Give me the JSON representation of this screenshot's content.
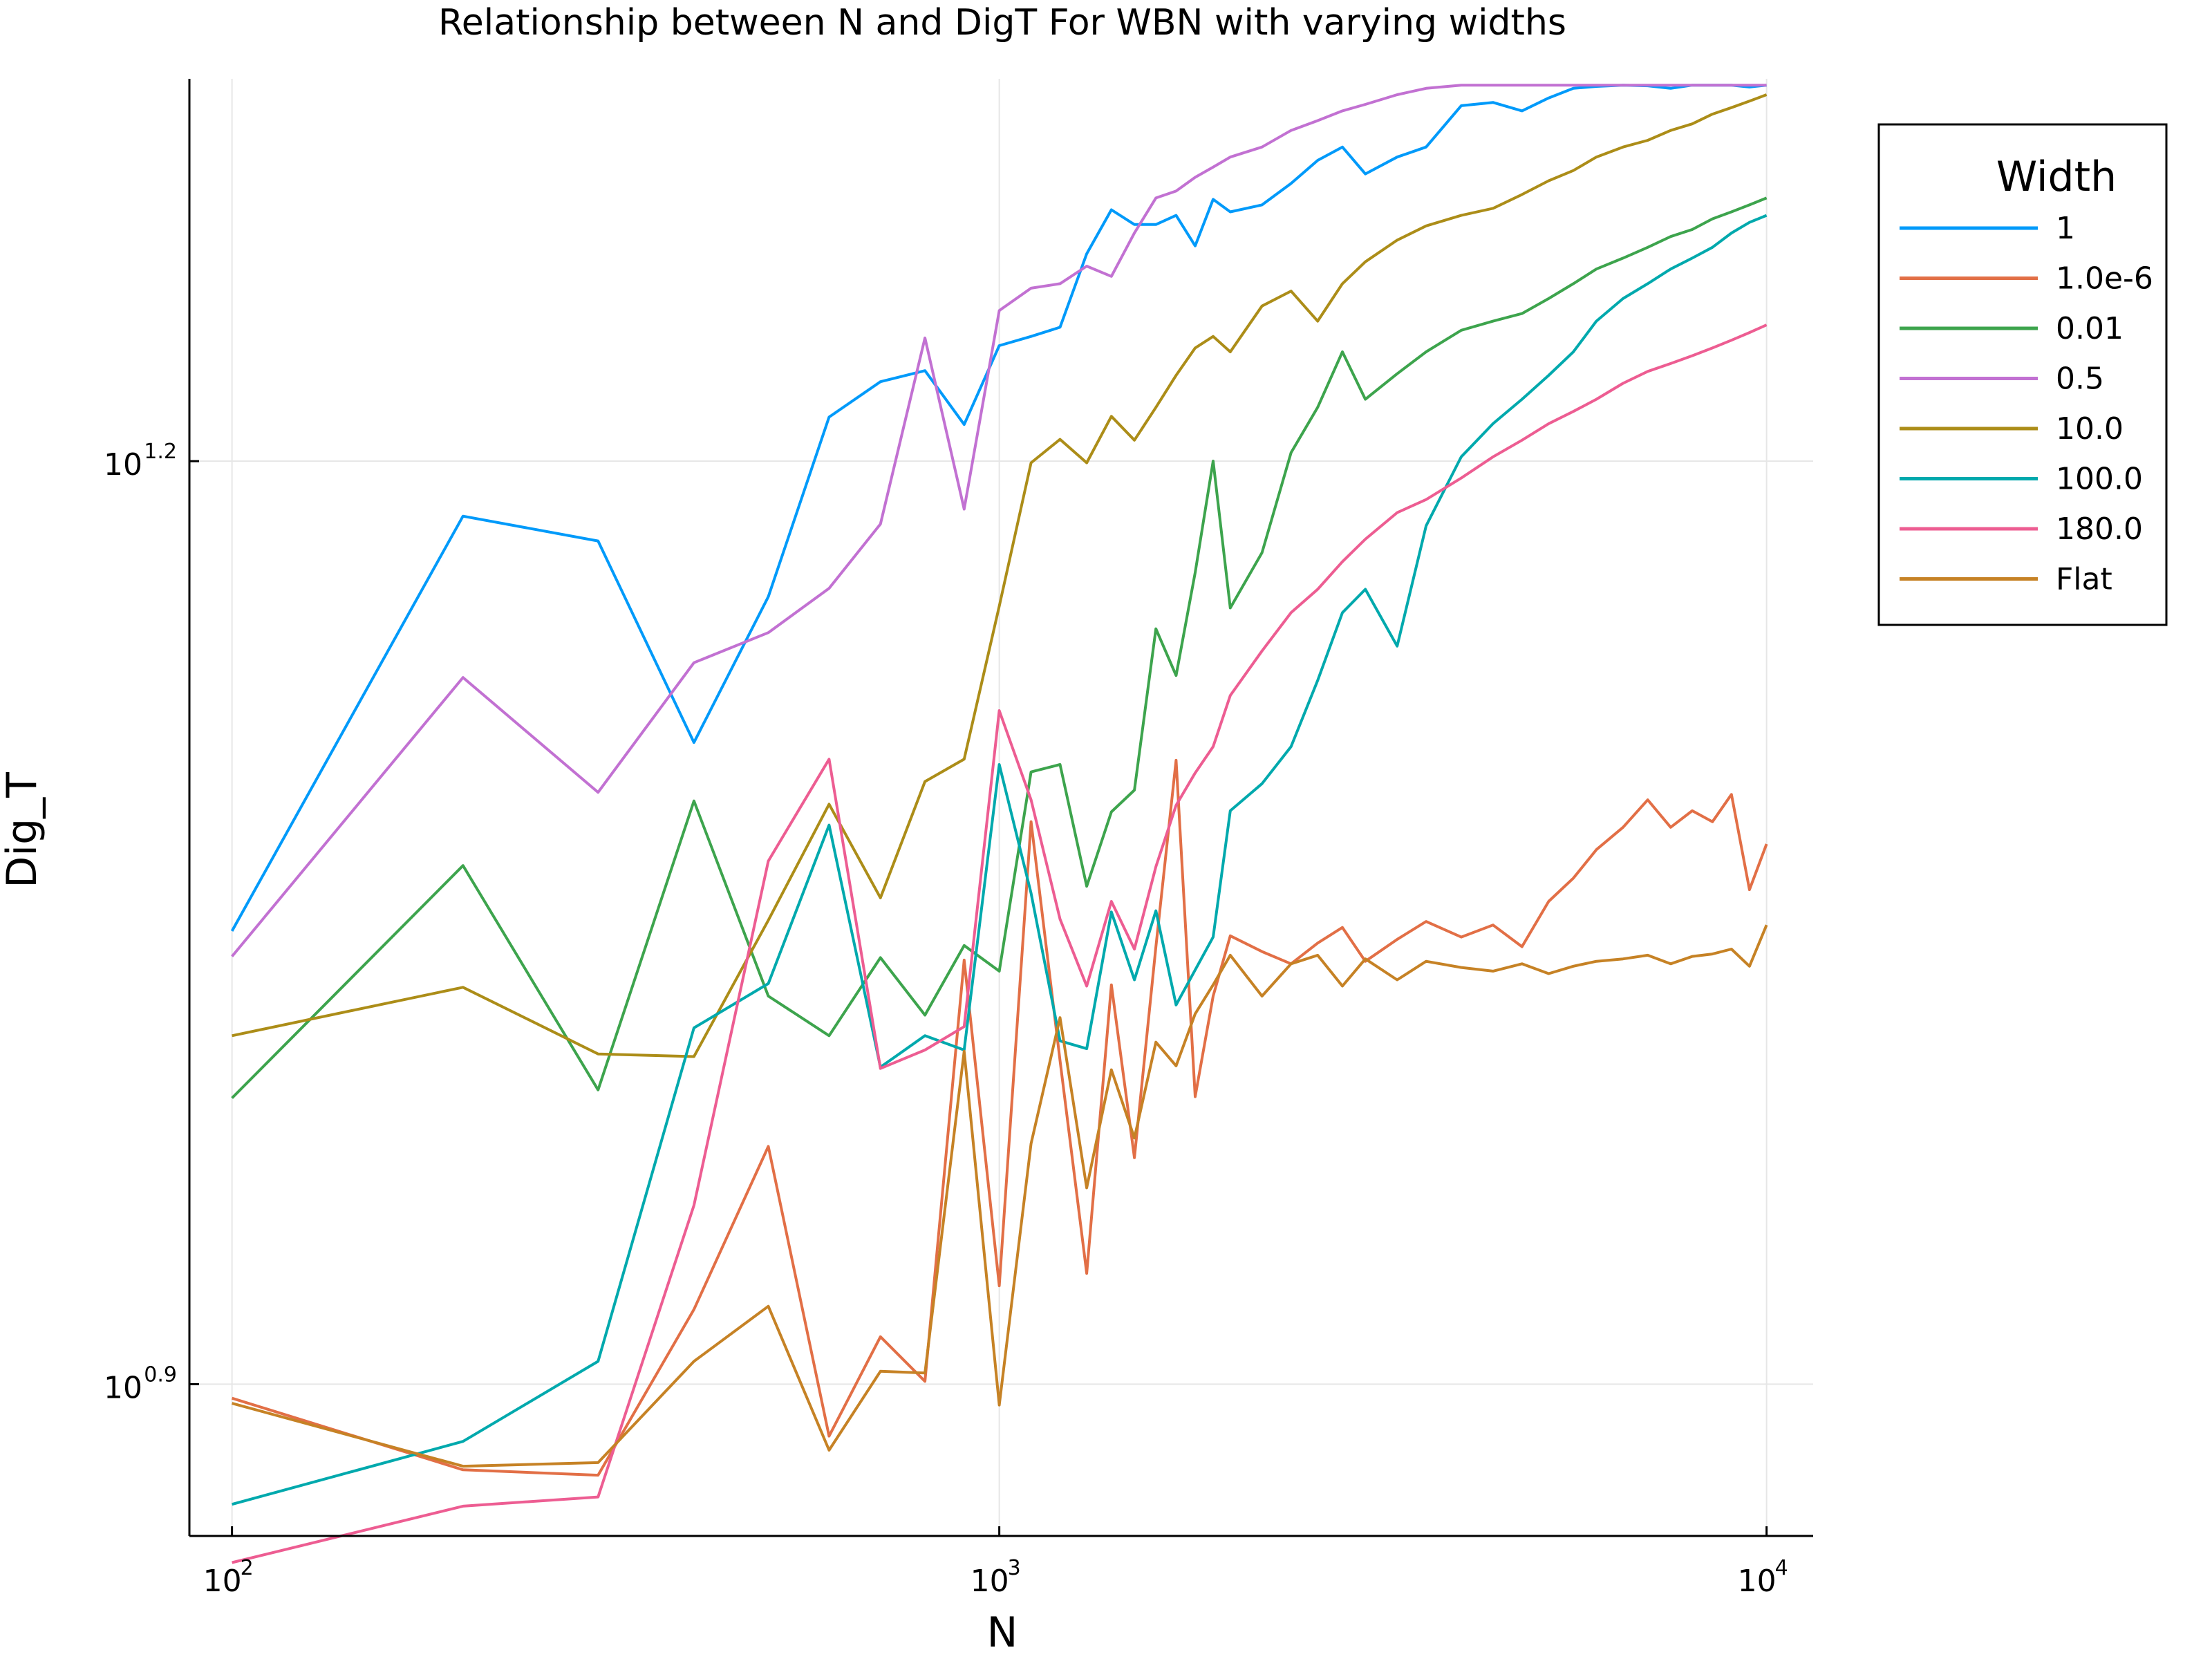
{
  "chart_data": {
    "type": "line",
    "title": "Relationship between N and DigT For WBN with varying widths",
    "xlabel": "N",
    "ylabel": "Dig_T",
    "xscale": "log10",
    "yscale": "log10",
    "xlim": [
      88,
      11500
    ],
    "ylim": [
      7.09,
      21.1
    ],
    "x_ticks": [
      {
        "base": "10",
        "exp": "2",
        "value": 100
      },
      {
        "base": "10",
        "exp": "3",
        "value": 1000
      },
      {
        "base": "10",
        "exp": "4",
        "value": 10000
      }
    ],
    "y_ticks": [
      {
        "base": "10",
        "exp": "0.9",
        "value": 7.943
      },
      {
        "base": "10",
        "exp": "1.2",
        "value": 15.849
      }
    ],
    "grid": true,
    "legend": {
      "title": "Width",
      "position": "top-right outside"
    },
    "x": [
      100,
      200,
      300,
      400,
      500,
      600,
      700,
      800,
      900,
      1000,
      1100,
      1200,
      1300,
      1400,
      1500,
      1600,
      1700,
      1800,
      1900,
      2000,
      2200,
      2400,
      2600,
      2800,
      3000,
      3300,
      3600,
      4000,
      4400,
      4800,
      5200,
      5600,
      6000,
      6500,
      7000,
      7500,
      8000,
      8500,
      9000,
      9500,
      10000
    ],
    "series": [
      {
        "name": "1",
        "color": "#009AFA",
        "values": [
          11.15,
          15.21,
          14.93,
          12.84,
          14.32,
          16.38,
          16.82,
          16.96,
          16.29,
          17.28,
          17.4,
          17.52,
          18.51,
          19.13,
          18.92,
          18.92,
          19.05,
          18.62,
          19.28,
          19.1,
          19.2,
          19.51,
          19.85,
          20.05,
          19.65,
          19.9,
          20.05,
          20.68,
          20.73,
          20.6,
          20.8,
          20.95,
          20.98,
          21.0,
          20.99,
          20.95,
          21.0,
          21.0,
          21.0,
          20.97,
          21.0
        ]
      },
      {
        "name": "1.0e-6",
        "color": "#E26F46",
        "values": [
          7.86,
          7.45,
          7.42,
          8.4,
          9.49,
          7.64,
          8.23,
          7.96,
          10.91,
          8.55,
          12.1,
          10.12,
          8.63,
          10.71,
          9.41,
          11.02,
          12.67,
          9.85,
          10.62,
          11.11,
          10.98,
          10.88,
          11.05,
          11.18,
          10.9,
          11.08,
          11.23,
          11.1,
          11.2,
          11.02,
          11.4,
          11.6,
          11.85,
          12.05,
          12.3,
          12.05,
          12.2,
          12.1,
          12.35,
          11.5,
          11.9
        ]
      },
      {
        "name": "0.01",
        "color": "#3DA44D",
        "values": [
          9.84,
          11.71,
          9.9,
          12.29,
          10.62,
          10.31,
          10.93,
          10.47,
          11.03,
          10.82,
          12.56,
          12.63,
          11.53,
          12.19,
          12.39,
          13.98,
          13.5,
          14.58,
          15.85,
          14.2,
          14.8,
          15.95,
          16.5,
          17.2,
          16.6,
          16.92,
          17.2,
          17.48,
          17.6,
          17.7,
          17.9,
          18.1,
          18.3,
          18.45,
          18.6,
          18.75,
          18.85,
          19.0,
          19.1,
          19.2,
          19.3
        ]
      },
      {
        "name": "0.5",
        "color": "#C271D2",
        "values": [
          10.94,
          13.48,
          12.37,
          13.63,
          13.94,
          14.41,
          15.12,
          17.38,
          15.29,
          17.74,
          18.04,
          18.1,
          18.34,
          18.2,
          18.8,
          19.3,
          19.4,
          19.6,
          19.75,
          19.9,
          20.05,
          20.3,
          20.45,
          20.6,
          20.7,
          20.85,
          20.95,
          21.0,
          21.0,
          21.0,
          21.0,
          21.0,
          21.0,
          21.0,
          21.0,
          21.0,
          21.0,
          21.0,
          21.0,
          21.0,
          21.0
        ]
      },
      {
        "name": "10.0",
        "color": "#AC8D18",
        "values": [
          10.31,
          10.69,
          10.17,
          10.15,
          11.24,
          12.26,
          11.43,
          12.47,
          12.68,
          14.22,
          15.83,
          16.11,
          15.83,
          16.39,
          16.1,
          16.5,
          16.9,
          17.25,
          17.4,
          17.2,
          17.8,
          18.0,
          17.6,
          18.1,
          18.4,
          18.7,
          18.9,
          19.05,
          19.15,
          19.35,
          19.55,
          19.7,
          19.9,
          20.05,
          20.15,
          20.3,
          20.4,
          20.55,
          20.65,
          20.75,
          20.85
        ]
      },
      {
        "name": "100.0",
        "color": "#00A9AD",
        "values": [
          7.26,
          7.61,
          8.08,
          10.37,
          10.72,
          12.07,
          10.07,
          10.31,
          10.2,
          12.63,
          11.47,
          10.27,
          10.21,
          11.31,
          10.75,
          11.32,
          10.55,
          10.83,
          11.1,
          12.2,
          12.45,
          12.8,
          13.45,
          14.15,
          14.4,
          13.8,
          15.1,
          15.9,
          16.3,
          16.6,
          16.9,
          17.2,
          17.6,
          17.9,
          18.1,
          18.3,
          18.45,
          18.6,
          18.8,
          18.95,
          19.05
        ]
      },
      {
        "name": "180.0",
        "color": "#ED5D92",
        "values": [
          6.95,
          7.25,
          7.3,
          9.08,
          11.75,
          12.68,
          10.06,
          10.2,
          10.38,
          13.15,
          12.3,
          11.25,
          10.7,
          11.4,
          11.0,
          11.7,
          12.25,
          12.55,
          12.8,
          13.3,
          13.75,
          14.15,
          14.4,
          14.7,
          14.95,
          15.25,
          15.4,
          15.65,
          15.9,
          16.1,
          16.3,
          16.45,
          16.6,
          16.8,
          16.95,
          17.05,
          17.15,
          17.25,
          17.35,
          17.45,
          17.55
        ]
      },
      {
        "name": "Flat",
        "color": "#C68225",
        "values": [
          7.83,
          7.47,
          7.49,
          8.08,
          8.42,
          7.56,
          8.02,
          8.01,
          10.19,
          7.82,
          9.51,
          10.45,
          9.2,
          10.05,
          9.55,
          10.26,
          10.08,
          10.48,
          10.71,
          10.95,
          10.62,
          10.88,
          10.95,
          10.7,
          10.92,
          10.75,
          10.9,
          10.85,
          10.82,
          10.88,
          10.8,
          10.86,
          10.9,
          10.92,
          10.95,
          10.88,
          10.94,
          10.96,
          11.0,
          10.86,
          11.2
        ]
      }
    ]
  }
}
